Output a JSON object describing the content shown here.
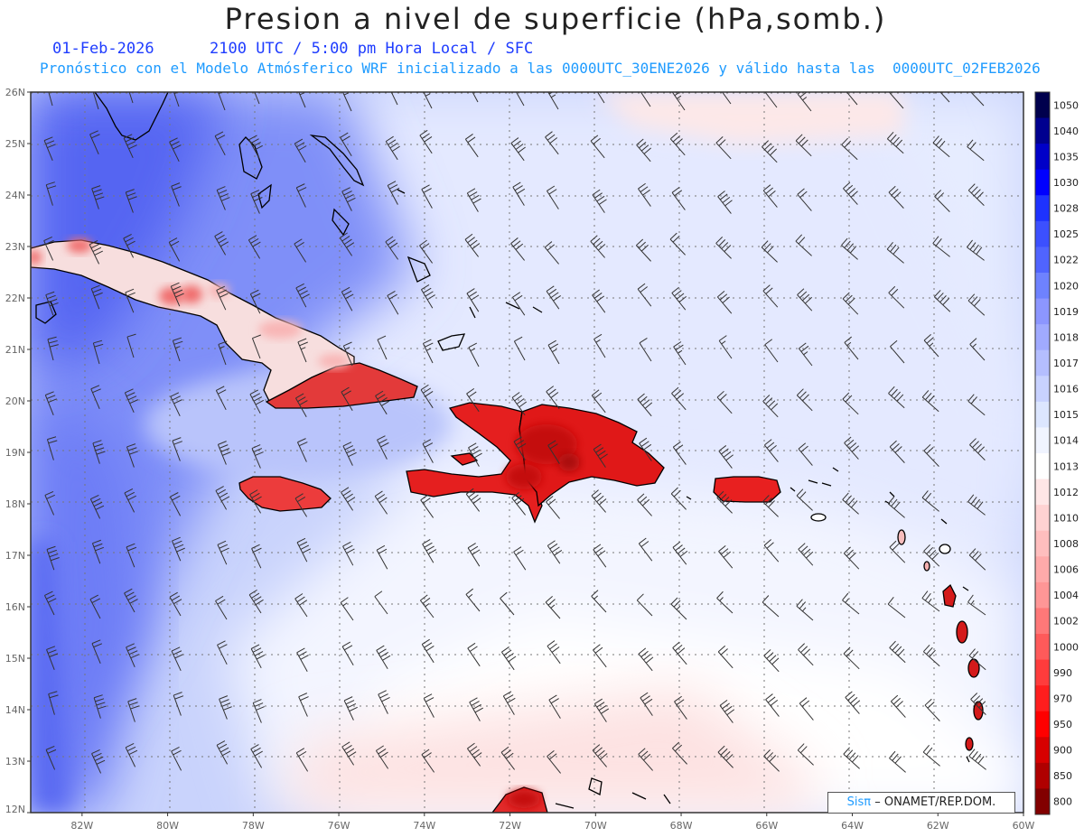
{
  "header": {
    "title": "Presion a nivel de superficie (hPa,somb.)",
    "date": "01-Feb-2026",
    "time_info": "2100 UTC / 5:00 pm Hora Local / SFC",
    "model_info": "Pronóstico con el Modelo Atmósferico WRF inicializado a las 0000UTC_30ENE2026 y válido hasta las  0000UTC_02FEB2026"
  },
  "map": {
    "lat_labels": [
      "26N",
      "25N",
      "24N",
      "23N",
      "22N",
      "21N",
      "20N",
      "19N",
      "18N",
      "17N",
      "16N",
      "15N",
      "14N",
      "13N",
      "12N"
    ],
    "lon_labels": [
      "82W",
      "80W",
      "78W",
      "76W",
      "74W",
      "72W",
      "70W",
      "68W",
      "66W",
      "64W",
      "62W",
      "60W"
    ],
    "lat_range": [
      12,
      26
    ],
    "lon_range": [
      -83.2,
      -60
    ],
    "gridlines": true,
    "land_colors": [
      "#f5c2c2",
      "#ef6161",
      "#e81a1a",
      "#c40d0d"
    ],
    "barb_color": "#333333"
  },
  "legend": {
    "levels": [
      "1050",
      "1040",
      "1035",
      "1030",
      "1028",
      "1025",
      "1022",
      "1020",
      "1019",
      "1018",
      "1017",
      "1016",
      "1015",
      "1014",
      "1013",
      "1012",
      "1010",
      "1008",
      "1006",
      "1004",
      "1002",
      "1000",
      "990",
      "970",
      "950",
      "900",
      "850",
      "800"
    ],
    "colors": [
      "#00004d",
      "#00008f",
      "#0000c8",
      "#0000ff",
      "#1e32ff",
      "#3c50ff",
      "#5064ff",
      "#6e82ff",
      "#8c96ff",
      "#a0aaff",
      "#b4beff",
      "#c8d2ff",
      "#dce6ff",
      "#f0f4ff",
      "#ffffff",
      "#ffe6e6",
      "#ffd2d2",
      "#ffbebe",
      "#ffaaaa",
      "#ff9696",
      "#ff7878",
      "#ff5a5a",
      "#ff3c3c",
      "#ff1e1e",
      "#ff0000",
      "#d70000",
      "#af0000",
      "#820000"
    ]
  },
  "credit": {
    "sis": "Sisπ",
    "text": "– ONAMET/REP.DOM."
  }
}
